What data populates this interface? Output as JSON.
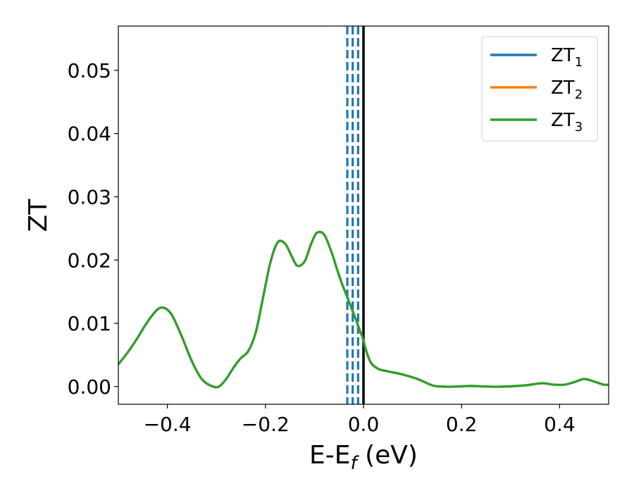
{
  "chart_data": {
    "type": "line",
    "xlabel": "E-E",
    "xlabel_sub": "f",
    "xlabel_unit": " (eV)",
    "ylabel": "ZT",
    "xlim": [
      -0.5,
      0.5
    ],
    "ylim": [
      -0.0028,
      0.057
    ],
    "xticks": [
      {
        "value": -0.4,
        "label": "−0.4"
      },
      {
        "value": -0.2,
        "label": "−0.2"
      },
      {
        "value": 0.0,
        "label": "0.0"
      },
      {
        "value": 0.2,
        "label": "0.2"
      },
      {
        "value": 0.4,
        "label": "0.4"
      }
    ],
    "yticks": [
      {
        "value": 0.0,
        "label": "0.00"
      },
      {
        "value": 0.01,
        "label": "0.01"
      },
      {
        "value": 0.02,
        "label": "0.02"
      },
      {
        "value": 0.03,
        "label": "0.03"
      },
      {
        "value": 0.04,
        "label": "0.04"
      },
      {
        "value": 0.05,
        "label": "0.05"
      }
    ],
    "grid": false,
    "legend": "top-right",
    "x": [
      -0.5,
      -0.48,
      -0.46,
      -0.44,
      -0.42,
      -0.405,
      -0.39,
      -0.37,
      -0.35,
      -0.33,
      -0.31,
      -0.295,
      -0.28,
      -0.265,
      -0.25,
      -0.235,
      -0.22,
      -0.205,
      -0.19,
      -0.175,
      -0.16,
      -0.147,
      -0.135,
      -0.12,
      -0.107,
      -0.095,
      -0.08,
      -0.065,
      -0.055,
      -0.045,
      -0.035,
      -0.025,
      -0.015,
      -0.008,
      -0.002,
      0.005,
      0.015,
      0.03,
      0.05,
      0.08,
      0.11,
      0.14,
      0.16,
      0.19,
      0.22,
      0.25,
      0.29,
      0.33,
      0.36,
      0.37,
      0.39,
      0.41,
      0.43,
      0.45,
      0.47,
      0.49,
      0.5
    ],
    "series": [
      {
        "name": "ZT",
        "sub": "1",
        "color": "#1f77b4",
        "values": [
          0.0035,
          0.0055,
          0.0078,
          0.0103,
          0.0122,
          0.0124,
          0.0112,
          0.0078,
          0.004,
          0.0012,
          0.0001,
          0.0,
          0.0012,
          0.003,
          0.0045,
          0.0056,
          0.0085,
          0.014,
          0.0196,
          0.0228,
          0.0226,
          0.0207,
          0.0191,
          0.0198,
          0.0225,
          0.0243,
          0.024,
          0.0212,
          0.0188,
          0.0165,
          0.0145,
          0.0125,
          0.0105,
          0.009,
          0.0078,
          0.0058,
          0.0038,
          0.0028,
          0.0024,
          0.0019,
          0.0012,
          0.0002,
          0.0,
          0.0,
          0.0001,
          0.0,
          0.0,
          0.0002,
          0.0005,
          0.0005,
          0.0003,
          0.0003,
          0.0007,
          0.0012,
          0.0008,
          0.0003,
          0.0003
        ]
      },
      {
        "name": "ZT",
        "sub": "2",
        "color": "#ff7f0e",
        "values": [
          0.0035,
          0.0055,
          0.0078,
          0.0103,
          0.0122,
          0.0124,
          0.0112,
          0.0078,
          0.004,
          0.0012,
          0.0001,
          0.0,
          0.0012,
          0.003,
          0.0045,
          0.0056,
          0.0085,
          0.014,
          0.0196,
          0.0228,
          0.0226,
          0.0207,
          0.0191,
          0.0198,
          0.0225,
          0.0243,
          0.024,
          0.0212,
          0.0188,
          0.0165,
          0.0145,
          0.0125,
          0.0105,
          0.009,
          0.0078,
          0.0058,
          0.0038,
          0.0028,
          0.0024,
          0.0019,
          0.0012,
          0.0002,
          0.0,
          0.0,
          0.0001,
          0.0,
          0.0,
          0.0002,
          0.0005,
          0.0005,
          0.0003,
          0.0003,
          0.0007,
          0.0012,
          0.0008,
          0.0003,
          0.0003
        ]
      },
      {
        "name": "ZT",
        "sub": "3",
        "color": "#2ca02c",
        "values": [
          0.0035,
          0.0055,
          0.0078,
          0.0103,
          0.0122,
          0.0124,
          0.0112,
          0.0078,
          0.004,
          0.0012,
          0.0001,
          0.0,
          0.0012,
          0.003,
          0.0045,
          0.0056,
          0.0085,
          0.014,
          0.0196,
          0.0228,
          0.0226,
          0.0207,
          0.0191,
          0.0198,
          0.0225,
          0.0243,
          0.024,
          0.0212,
          0.0188,
          0.0165,
          0.0145,
          0.0125,
          0.0105,
          0.009,
          0.0078,
          0.0058,
          0.0038,
          0.0028,
          0.0024,
          0.0019,
          0.0012,
          0.0002,
          0.0,
          0.0,
          0.0001,
          0.0,
          0.0,
          0.0002,
          0.0005,
          0.0005,
          0.0003,
          0.0003,
          0.0007,
          0.0012,
          0.0008,
          0.0003,
          0.0003
        ]
      }
    ],
    "vlines": [
      {
        "x": -0.033,
        "style": "dashed",
        "color": "#1f77b4"
      },
      {
        "x": -0.022,
        "style": "dashed",
        "color": "#1f77b4"
      },
      {
        "x": -0.011,
        "style": "dashed",
        "color": "#1f77b4"
      },
      {
        "x": 0.0,
        "style": "solid",
        "color": "#000000"
      }
    ]
  }
}
